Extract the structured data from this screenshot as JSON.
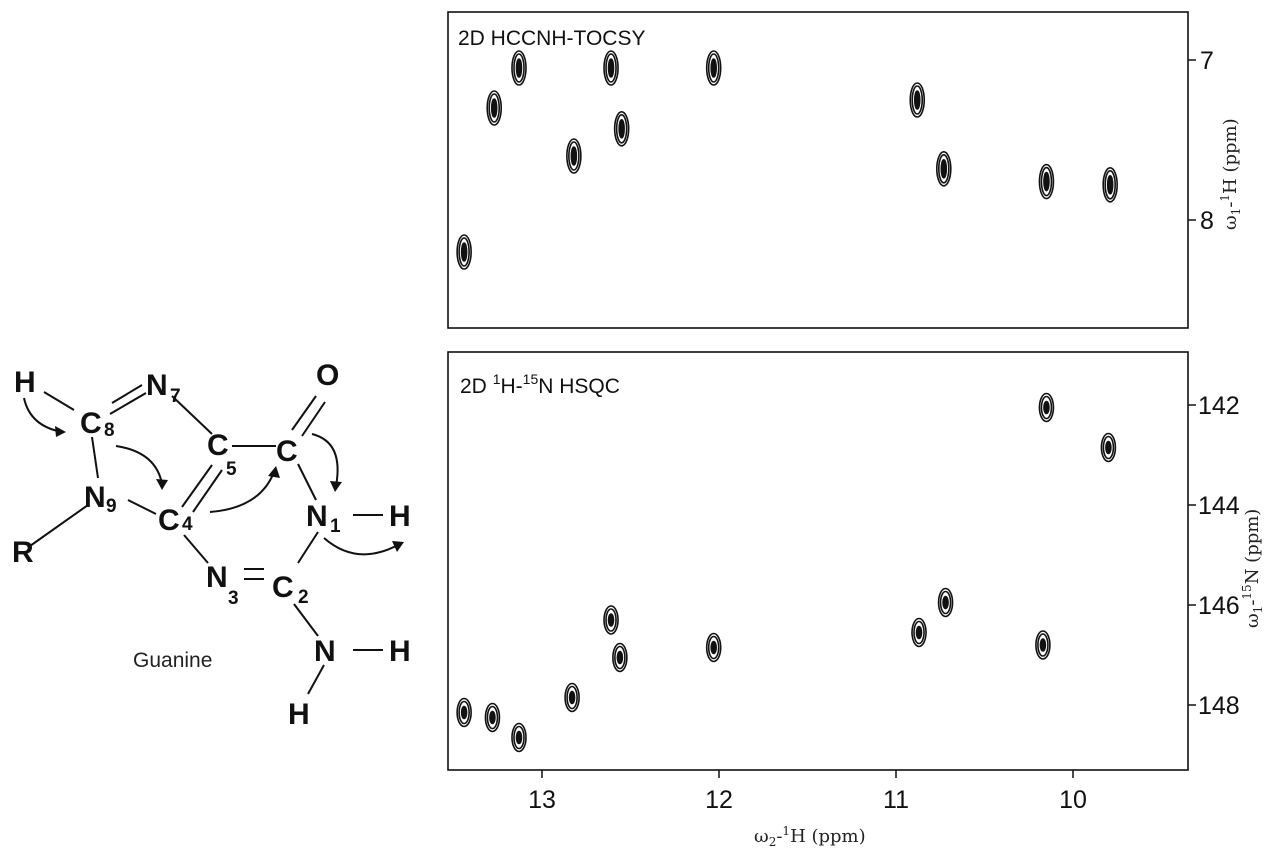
{
  "chart_data": [
    {
      "type": "scatter",
      "title": "2D HCCNH-TOCSY",
      "ylabel_text": "ω₁-¹H  (ppm)",
      "xlim": [
        13.7,
        9.4
      ],
      "ylim": [
        6.7,
        8.6
      ],
      "y_inverted": true,
      "y_ticks": [
        "7",
        "8"
      ],
      "grid": false,
      "points": [
        {
          "x": 13.44,
          "y": 8.2
        },
        {
          "x": 13.27,
          "y": 7.3
        },
        {
          "x": 13.13,
          "y": 7.05
        },
        {
          "x": 12.82,
          "y": 7.6
        },
        {
          "x": 12.61,
          "y": 7.05
        },
        {
          "x": 12.55,
          "y": 7.43
        },
        {
          "x": 12.03,
          "y": 7.05
        },
        {
          "x": 10.88,
          "y": 7.25
        },
        {
          "x": 10.73,
          "y": 7.68
        },
        {
          "x": 10.15,
          "y": 7.76
        },
        {
          "x": 9.79,
          "y": 7.78
        }
      ]
    },
    {
      "type": "scatter",
      "title": "2D ¹H-¹⁵N HSQC",
      "ylabel_text": "ω₁-¹⁵N  (ppm)",
      "xlim": [
        13.7,
        9.4
      ],
      "ylim": [
        141.0,
        149.2
      ],
      "y_inverted": true,
      "y_ticks": [
        "142",
        "144",
        "146",
        "148"
      ],
      "grid": false,
      "points": [
        {
          "x": 13.44,
          "y": 148.15
        },
        {
          "x": 13.28,
          "y": 148.25
        },
        {
          "x": 13.13,
          "y": 148.65
        },
        {
          "x": 12.83,
          "y": 147.85
        },
        {
          "x": 12.61,
          "y": 146.3
        },
        {
          "x": 12.56,
          "y": 147.05
        },
        {
          "x": 12.03,
          "y": 146.85
        },
        {
          "x": 10.87,
          "y": 146.55
        },
        {
          "x": 10.72,
          "y": 145.95
        },
        {
          "x": 10.15,
          "y": 142.05
        },
        {
          "x": 9.8,
          "y": 142.85
        },
        {
          "x": 10.17,
          "y": 146.8
        }
      ]
    }
  ],
  "x_axis": {
    "label_text": "ω₂-¹H  (ppm)",
    "ticks": [
      "13",
      "12",
      "11",
      "10"
    ]
  },
  "molecule": {
    "caption": "Guanine",
    "atoms": {
      "H_top": "H",
      "C8": "C",
      "C8_sub": "8",
      "N7": "N",
      "N7_sub": "7",
      "O": "O",
      "C5": "C",
      "C5_sub": "5",
      "C6": "C",
      "N9": "N",
      "N9_sub": "9",
      "C4": "C",
      "C4_sub": "4",
      "N1": "N",
      "N1_sub": "1",
      "H_N1": "H",
      "R": "R",
      "N3": "N",
      "N3_sub": "3",
      "C2": "C",
      "C2_sub": "2",
      "N_amino": "N",
      "H_amino_right": "H",
      "H_amino_bottom": "H"
    }
  }
}
